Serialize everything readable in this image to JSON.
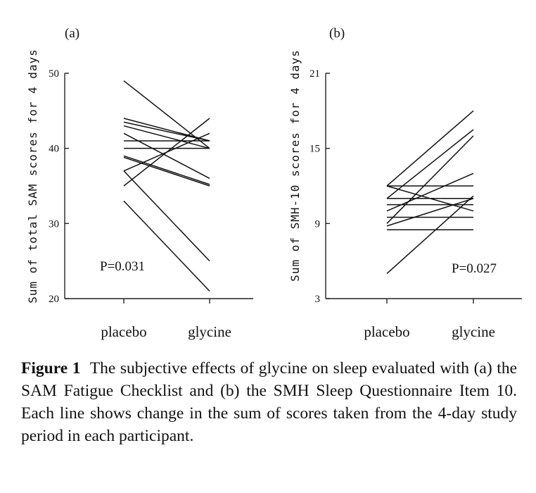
{
  "chart_data": [
    {
      "type": "line",
      "panel_label": "(a)",
      "ylabel": "Sum of total SAM scores for 4 days",
      "categories": [
        "placebo",
        "glycine"
      ],
      "ylim": [
        20,
        50
      ],
      "yticks": [
        20,
        30,
        40,
        50
      ],
      "annotation": "P=0.031",
      "grid": false,
      "series": [
        {
          "values": [
            49,
            40
          ]
        },
        {
          "values": [
            44,
            41
          ]
        },
        {
          "values": [
            43.5,
            41
          ]
        },
        {
          "values": [
            43,
            40
          ]
        },
        {
          "values": [
            42,
            36
          ]
        },
        {
          "values": [
            41,
            41
          ]
        },
        {
          "values": [
            40,
            40
          ]
        },
        {
          "values": [
            39,
            35.2
          ]
        },
        {
          "values": [
            38.8,
            35
          ]
        },
        {
          "values": [
            37,
            42
          ]
        },
        {
          "values": [
            37,
            25
          ]
        },
        {
          "values": [
            35,
            44
          ]
        },
        {
          "values": [
            33,
            21
          ]
        }
      ]
    },
    {
      "type": "line",
      "panel_label": "(b)",
      "ylabel": "Sum of  SMH-10 scores for 4 days",
      "categories": [
        "placebo",
        "glycine"
      ],
      "ylim": [
        3,
        21
      ],
      "yticks": [
        3,
        9,
        15,
        21
      ],
      "annotation": "P=0.027",
      "grid": false,
      "series": [
        {
          "values": [
            12,
            18
          ]
        },
        {
          "values": [
            12,
            10
          ]
        },
        {
          "values": [
            12,
            12
          ]
        },
        {
          "values": [
            11,
            16.5
          ]
        },
        {
          "values": [
            11,
            11
          ]
        },
        {
          "values": [
            10.5,
            10.5
          ]
        },
        {
          "values": [
            10,
            13
          ]
        },
        {
          "values": [
            9,
            16
          ]
        },
        {
          "values": [
            8.8,
            11
          ]
        },
        {
          "values": [
            9.5,
            9.5
          ]
        },
        {
          "values": [
            8.5,
            8.5
          ]
        },
        {
          "values": [
            5,
            11.2
          ]
        }
      ]
    }
  ],
  "caption": {
    "label": "Figure 1",
    "text": "The subjective effects of glycine on sleep evaluated with (a) the SAM Fatigue Checklist and (b) the SMH Sleep Questionnaire Item 10. Each line shows change in the sum of scores taken from the 4-day study period in each participant."
  }
}
